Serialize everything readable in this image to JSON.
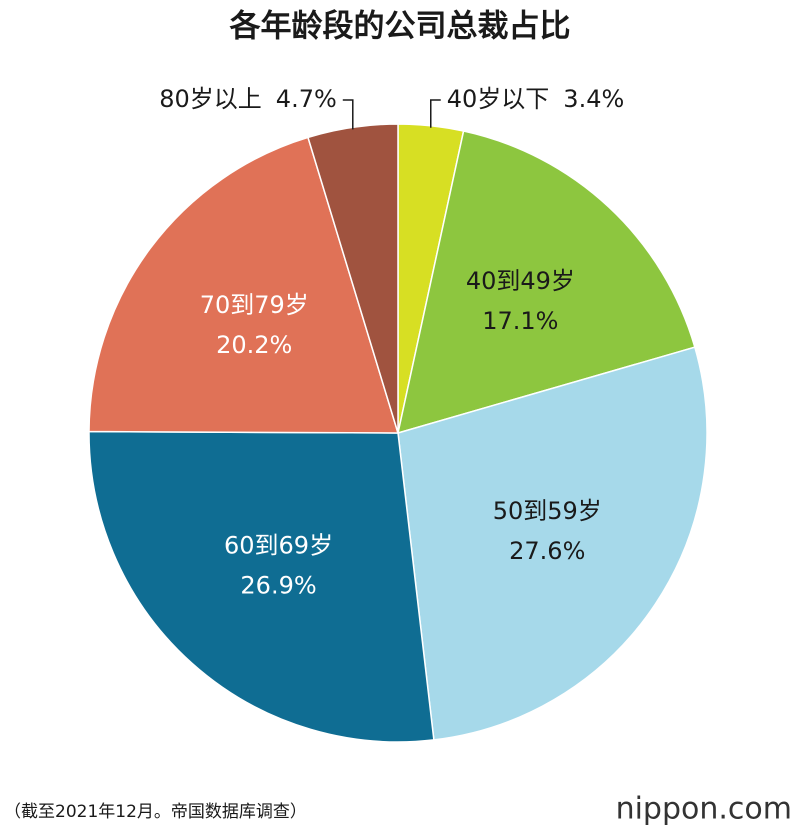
{
  "chart_data": {
    "type": "pie",
    "title": "各年龄段的公司总裁占比",
    "categories": [
      "40岁以下",
      "40到49岁",
      "50到59岁",
      "60到69岁",
      "70到79岁",
      "80岁以上"
    ],
    "values": [
      3.4,
      17.1,
      27.6,
      26.9,
      20.2,
      4.7
    ],
    "value_labels": [
      "3.4%",
      "17.1%",
      "27.6%",
      "26.9%",
      "20.2%",
      "4.7%"
    ],
    "colors": [
      "#d7df23",
      "#8dc63f",
      "#a6d9ea",
      "#0f6d93",
      "#e07257",
      "#a0533f"
    ],
    "source": "（截至2021年12月。帝国数据库调查）",
    "logo": "nippon.com"
  }
}
